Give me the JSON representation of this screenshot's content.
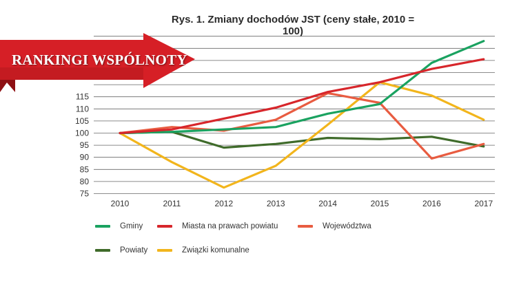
{
  "banner": {
    "text": "RANKINGI WSPÓLNOTY",
    "color": "#d61f26",
    "dark_color": "#8e1014"
  },
  "chart_data": {
    "type": "line",
    "title": "Rys. 1. Zmiany dochodów JST (ceny stałe, 2010 = 100)",
    "xlabel": "",
    "ylabel": "",
    "x": [
      "2010",
      "2011",
      "2012",
      "2013",
      "2014",
      "2015",
      "2016",
      "2017"
    ],
    "yticks": [
      75,
      80,
      85,
      90,
      95,
      100,
      105,
      110,
      115
    ],
    "ylim": [
      75,
      140
    ],
    "grid": true,
    "legend_position": "bottom",
    "series": [
      {
        "name": "Gminy",
        "color": "#1aa260",
        "values": [
          100,
          100.5,
          101.5,
          102.5,
          108,
          112,
          129,
          138
        ]
      },
      {
        "name": "Miasta na prawach powiatu",
        "color": "#d7262b",
        "values": [
          100,
          101.5,
          106,
          110.5,
          117,
          121,
          126.5,
          130.5
        ]
      },
      {
        "name": "Województwa",
        "color": "#e85c41",
        "values": [
          100,
          102.5,
          101,
          105.5,
          116.5,
          112.5,
          89.5,
          95.5
        ]
      },
      {
        "name": "Powiaty",
        "color": "#3f6b2a",
        "values": [
          100,
          100.5,
          94,
          95.5,
          98,
          97.5,
          98.5,
          94.5
        ]
      },
      {
        "name": "Związki komunalne",
        "color": "#f2b51c",
        "values": [
          100,
          88,
          77.5,
          86.5,
          103.5,
          121,
          115.5,
          105.5
        ]
      }
    ]
  }
}
